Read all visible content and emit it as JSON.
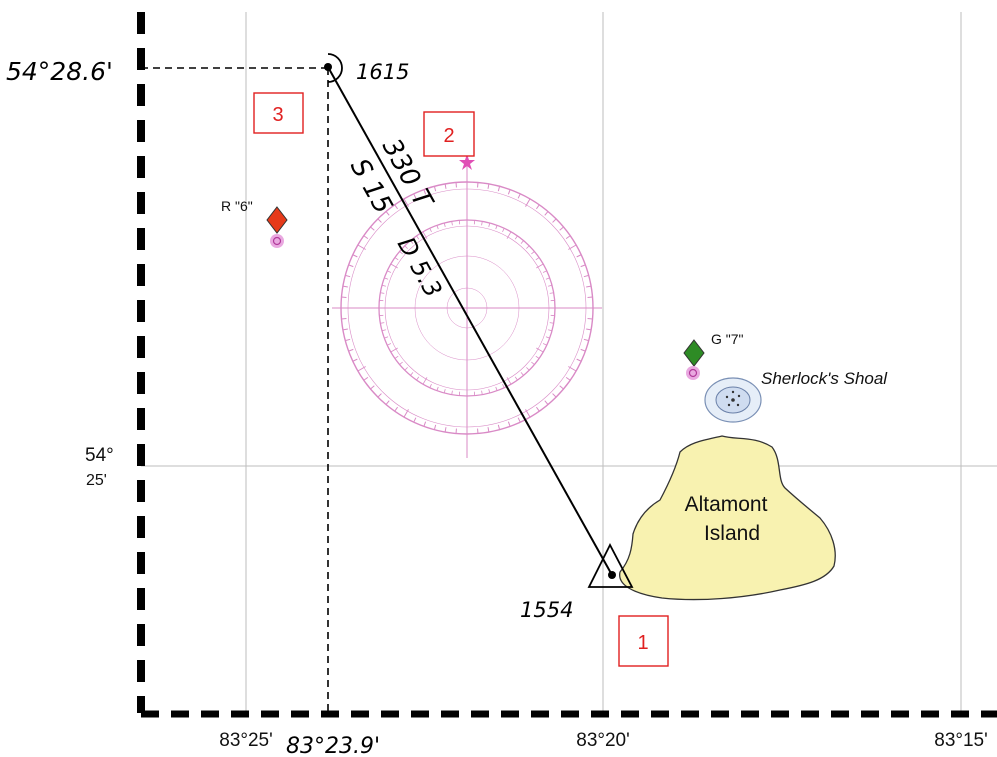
{
  "chart": {
    "longitude_labels": [
      "83°25'",
      "83°20'",
      "83°15'"
    ],
    "latitude_label_deg": "54°",
    "latitude_label_min": "25'",
    "fix_lat_label": "54°28.6'",
    "fix_lon_label": "83°23.9'"
  },
  "positions": {
    "start_time": "1554",
    "dr_time": "1615"
  },
  "course_line": {
    "course_label": "330 T",
    "speed_label": "S 15",
    "distance_label": "D 5.3"
  },
  "step_markers": [
    "1",
    "2",
    "3"
  ],
  "aids": {
    "red_buoy": "R \"6\"",
    "green_buoy": "G \"7\""
  },
  "features": {
    "shoal_name": "Sherlock's Shoal",
    "island_name_line1": "Altamont",
    "island_name_line2": "Island"
  },
  "colors": {
    "compass_rose": "#d98ac6",
    "island_fill": "#f8f2b0",
    "red_buoy": "#e63a1a",
    "green_buoy": "#2e8b25",
    "step_box": "#e02020"
  }
}
